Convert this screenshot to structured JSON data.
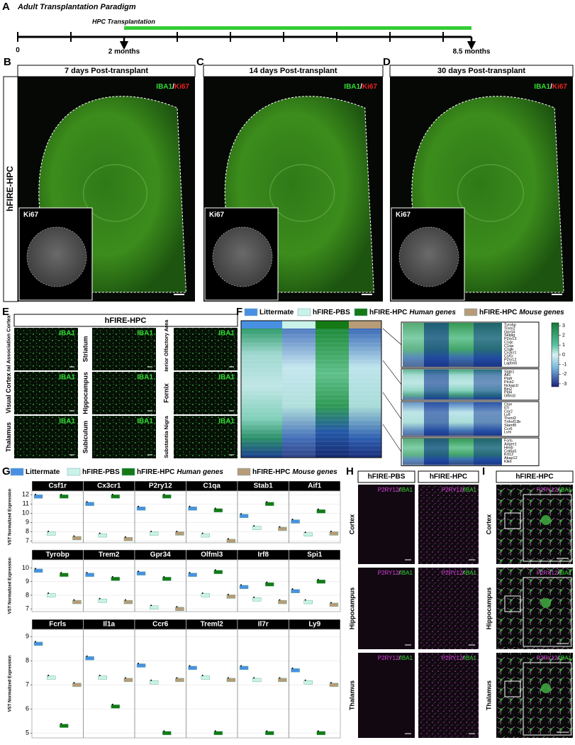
{
  "groups": [
    {
      "name": "Littermate",
      "color": "#4a90e2"
    },
    {
      "name": "hFIRE-PBS",
      "color": "#c9f2e8"
    },
    {
      "name": "hFIRE-HPC",
      "qualifier": "Human genes",
      "color": "#157a15"
    },
    {
      "name": "hFIRE-HPC",
      "qualifier": "Mouse genes",
      "color": "#b89b78"
    }
  ],
  "panel_a": {
    "letter": "A",
    "title": "Adult Transplantation Paradigm",
    "bar_label": "HPC Transplantation",
    "start_label": "0",
    "mid_label": "2 months",
    "end_label": "8.5 months"
  },
  "panels_bcd": {
    "row_label": "hFIRE-HPC",
    "panels": [
      {
        "letter": "B",
        "title": "7 days Post-transplant",
        "stain_green": "IBA1",
        "separator": "/",
        "stain_red": "Ki67",
        "inset_label": "Ki67"
      },
      {
        "letter": "C",
        "title": "14 days Post-transplant",
        "stain_green": "IBA1",
        "separator": "/",
        "stain_red": "Ki67",
        "inset_label": "Ki67"
      },
      {
        "letter": "D",
        "title": "30 days Post-transplant",
        "stain_green": "IBA1",
        "separator": "/",
        "stain_red": "Ki67",
        "inset_label": "Ki67"
      }
    ]
  },
  "panel_e": {
    "letter": "E",
    "header": "hFIRE-HPC",
    "regions": [
      {
        "name": "Frontal Association Cortex",
        "stain": "IBA1"
      },
      {
        "name": "Striatum",
        "stain": "IBA1"
      },
      {
        "name": "Anterior Olfactory Area",
        "stain": "IBA1"
      },
      {
        "name": "Visual Cortex",
        "stain": "IBA1"
      },
      {
        "name": "Hippocampus",
        "stain": "IBA1"
      },
      {
        "name": "Fornix",
        "stain": "IBA1"
      },
      {
        "name": "Thalamus",
        "stain": "IBA1"
      },
      {
        "name": "Subiculum",
        "stain": "IBA1"
      },
      {
        "name": "Substantia Nigra",
        "stain": "IBA1"
      }
    ]
  },
  "panel_f": {
    "letter": "F",
    "gene_blocks": [
      [
        "Tyrobp",
        "Trem2",
        "Gpr34",
        "Selplg",
        "P2ry13",
        "C1qc",
        "C1qa",
        "C1qb",
        "Cx3cr1",
        "Csf1r",
        "P2ry12",
        "Laptm5"
      ],
      [
        "Stab1",
        "Aif1",
        "Ptafr",
        "Plcb2",
        "Nckap1l",
        "Bin2",
        "Pld4",
        "Olfml3"
      ],
      [
        "Ctse",
        "Il7r",
        "Cnr2",
        "Ly9",
        "Treml2",
        "Tnfrsf13b",
        "Slamf9",
        "Ccr6",
        "Lvm"
      ],
      [
        "Fcrls",
        "Adgre1",
        "Hexb",
        "Col6a5",
        "Krt12",
        "Akap12",
        "Klk6"
      ]
    ],
    "colorbar_lim": [
      -3.3,
      3.3
    ],
    "colorbar_ticks": [
      3,
      2,
      1,
      0,
      -1,
      -2,
      -3
    ]
  },
  "panel_g": {
    "letter": "G",
    "y_label": "VST Normalized Expression",
    "rows": [
      {
        "ylim": [
          6.8,
          12.4
        ],
        "yticks": [
          7,
          8,
          9,
          10,
          11,
          12
        ],
        "genes": [
          {
            "name": "Csf1r",
            "values": [
              11.8,
              7.8,
              11.8,
              7.3
            ]
          },
          {
            "name": "Cx3cr1",
            "values": [
              11.0,
              7.6,
              11.8,
              7.2
            ]
          },
          {
            "name": "P2ry12",
            "values": [
              10.5,
              7.8,
              11.8,
              7.8
            ]
          },
          {
            "name": "C1qa",
            "values": [
              10.5,
              7.6,
              10.3,
              7.0
            ]
          },
          {
            "name": "Stab1",
            "values": [
              9.7,
              8.4,
              11.0,
              8.3
            ]
          },
          {
            "name": "Aif1",
            "values": [
              9.1,
              7.7,
              10.2,
              7.8
            ]
          }
        ]
      },
      {
        "ylim": [
          6.8,
          10.6
        ],
        "yticks": [
          7,
          8,
          9,
          10
        ],
        "genes": [
          {
            "name": "Tyrobp",
            "values": [
              9.8,
              8.0,
              9.5,
              7.5
            ]
          },
          {
            "name": "Trem2",
            "values": [
              9.5,
              7.6,
              9.2,
              7.5
            ]
          },
          {
            "name": "Gpr34",
            "values": [
              9.6,
              7.1,
              9.2,
              7.0
            ]
          },
          {
            "name": "Olfml3",
            "values": [
              9.5,
              8.0,
              9.7,
              7.9
            ]
          },
          {
            "name": "Irf8",
            "values": [
              8.6,
              7.7,
              8.8,
              7.5
            ]
          },
          {
            "name": "Spi1",
            "values": [
              8.3,
              7.5,
              9.0,
              7.3
            ]
          }
        ]
      },
      {
        "ylim": [
          4.8,
          9.3
        ],
        "yticks": [
          5,
          6,
          7,
          8,
          9
        ],
        "genes": [
          {
            "name": "Fcrls",
            "values": [
              8.7,
              7.3,
              5.3,
              7.0
            ]
          },
          {
            "name": "Il1a",
            "values": [
              8.1,
              7.3,
              6.1,
              7.2
            ]
          },
          {
            "name": "Ccr6",
            "values": [
              7.8,
              7.1,
              5.0,
              7.2
            ]
          },
          {
            "name": "Treml2",
            "values": [
              7.7,
              7.3,
              5.0,
              7.2
            ]
          },
          {
            "name": "Il7r",
            "values": [
              7.7,
              7.2,
              5.0,
              7.2
            ]
          },
          {
            "name": "Ly9",
            "values": [
              7.6,
              7.1,
              5.0,
              7.0
            ]
          }
        ]
      }
    ]
  },
  "panel_h": {
    "letter": "H",
    "columns": [
      "hFIRE-PBS",
      "hFIRE-HPC"
    ],
    "rows": [
      "Cortex",
      "Hippocampus",
      "Thalamus"
    ],
    "stain_magenta": "P2RY12",
    "separator": "/",
    "stain_green": "IBA1"
  },
  "panel_i": {
    "letter": "I",
    "column": "hFIRE-HPC",
    "rows": [
      "Cortex",
      "Hippocampus",
      "Thalamus"
    ],
    "stain_magenta": "P2RY12",
    "separator": "/",
    "stain_green": "IBA1"
  }
}
